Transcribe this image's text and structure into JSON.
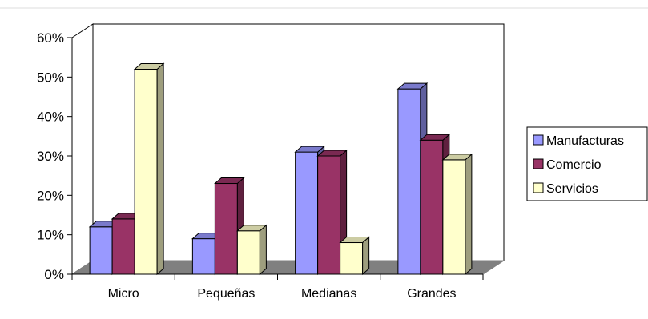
{
  "chart_data": {
    "type": "bar",
    "title": "",
    "xlabel": "",
    "ylabel": "",
    "categories": [
      "Micro",
      "Pequeñas",
      "Medianas",
      "Grandes"
    ],
    "series": [
      {
        "name": "Manufacturas",
        "values": [
          12,
          9,
          31,
          47
        ],
        "color": "#9999ff"
      },
      {
        "name": "Comercio",
        "values": [
          14,
          23,
          30,
          34
        ],
        "color": "#993366"
      },
      {
        "name": "Servicios",
        "values": [
          52,
          11,
          8,
          29
        ],
        "color": "#ffffcc"
      }
    ],
    "ylim": [
      0,
      60
    ],
    "yticks": [
      "0%",
      "10%",
      "20%",
      "30%",
      "40%",
      "50%",
      "60%"
    ],
    "grid": false,
    "legend_position": "right",
    "three_d": true,
    "colors": {
      "floor": "#808080",
      "edge": "#000000"
    }
  }
}
